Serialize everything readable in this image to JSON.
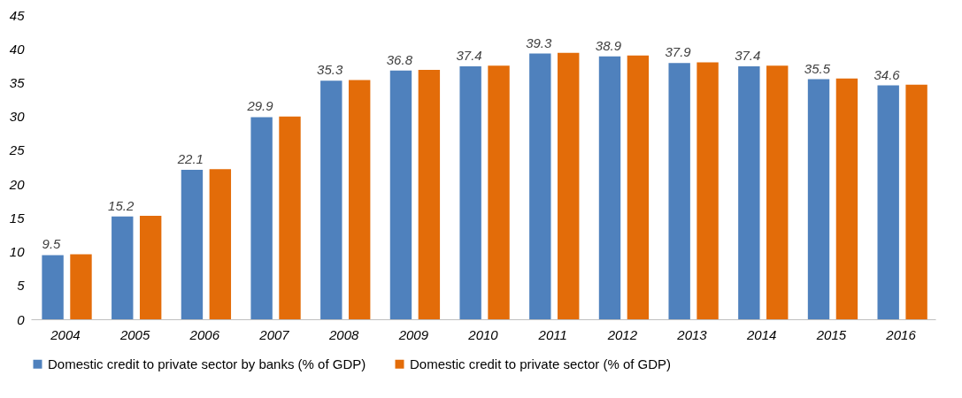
{
  "chart_data": {
    "type": "bar",
    "categories": [
      "2004",
      "2005",
      "2006",
      "2007",
      "2008",
      "2009",
      "2010",
      "2011",
      "2012",
      "2013",
      "2014",
      "2015",
      "2016"
    ],
    "series": [
      {
        "name": "Domestic credit to private sector by banks (% of GDP)",
        "color": "#4f81bd",
        "values": [
          9.5,
          15.2,
          22.1,
          29.9,
          35.3,
          36.8,
          37.4,
          39.3,
          38.9,
          37.9,
          37.4,
          35.5,
          34.6
        ],
        "value_labels": [
          "9.5",
          "15.2",
          "22.1",
          "29.9",
          "35.3",
          "36.8",
          "37.4",
          "39.3",
          "38.9",
          "37.9",
          "37.4",
          "35.5",
          "34.6"
        ]
      },
      {
        "name": "Domestic credit to private sector (% of GDP)",
        "color": "#e36c09",
        "values": [
          9.6,
          15.3,
          22.2,
          30.0,
          35.4,
          36.9,
          37.5,
          39.4,
          39.0,
          38.0,
          37.5,
          35.6,
          34.7
        ]
      }
    ],
    "ylim": [
      0,
      45
    ],
    "yticks": [
      0,
      5,
      10,
      15,
      20,
      25,
      30,
      35,
      40,
      45
    ],
    "grid": false,
    "legend": "bottom"
  }
}
